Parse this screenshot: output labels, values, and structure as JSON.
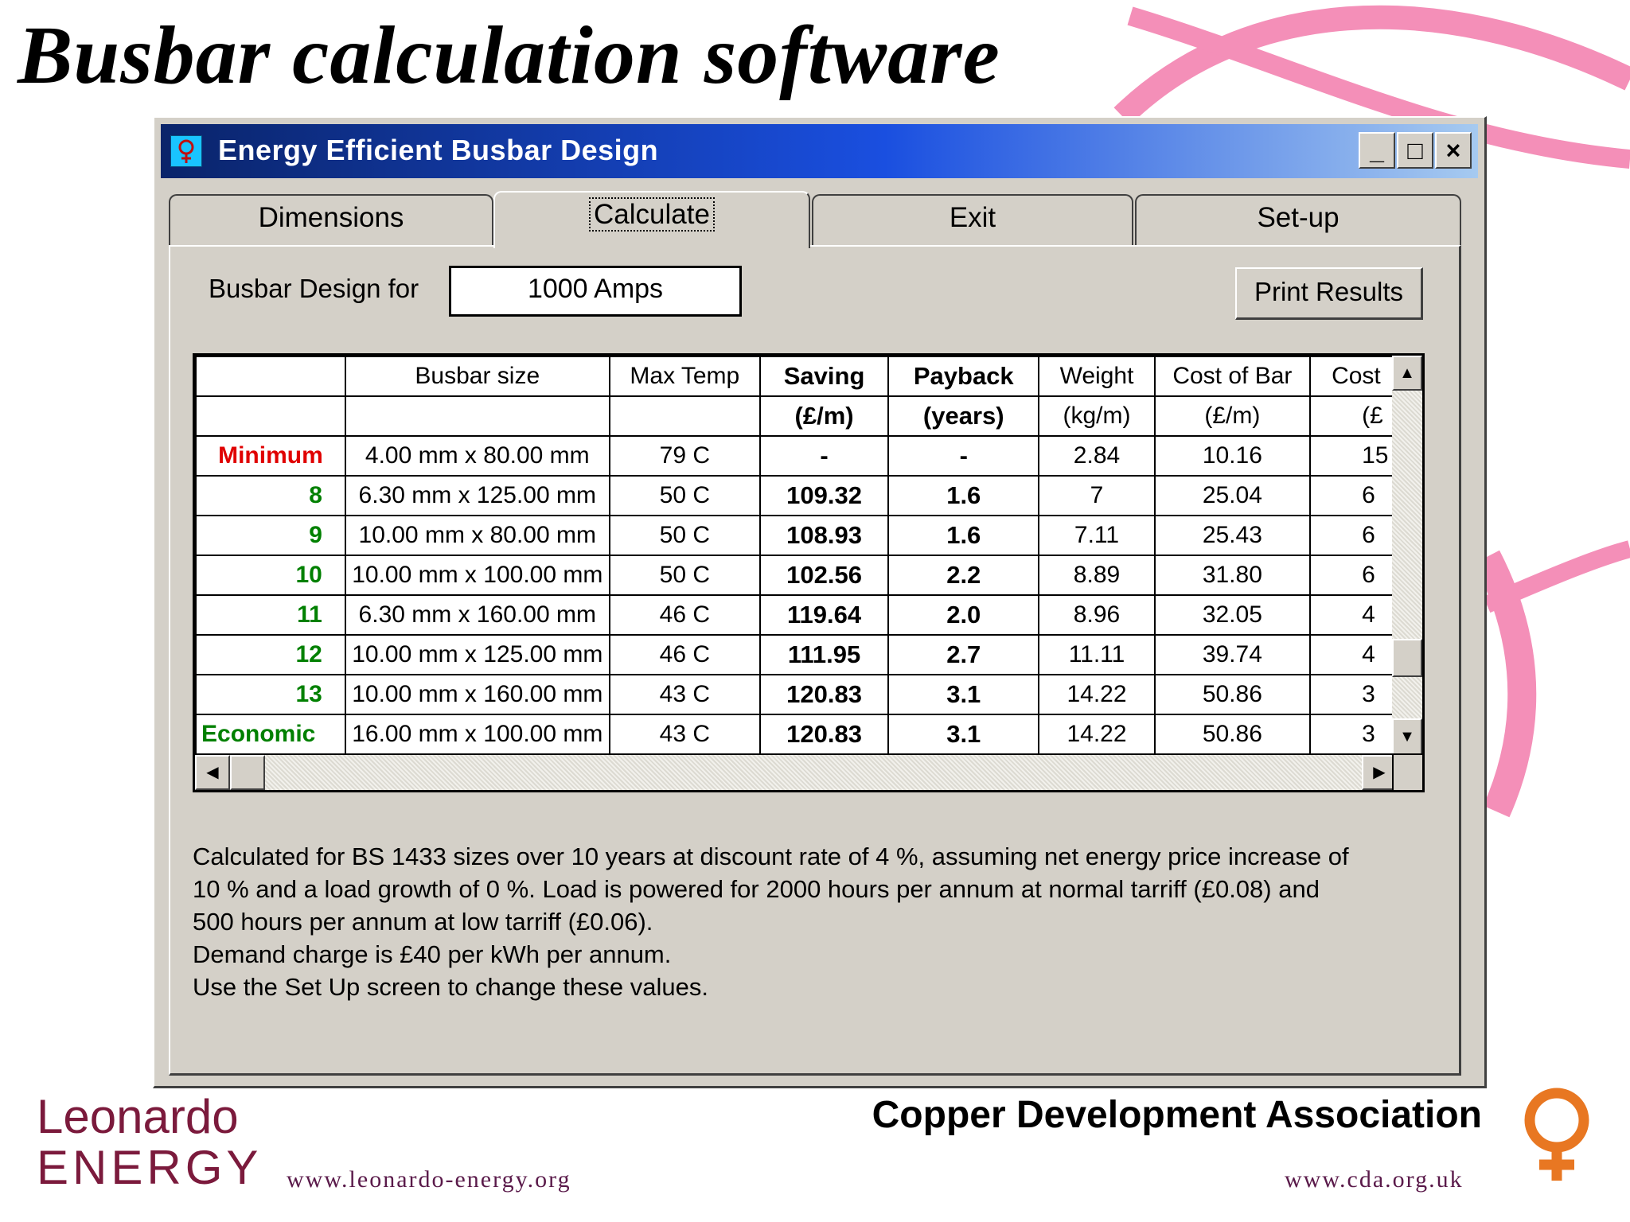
{
  "slide": {
    "title": "Busbar calculation software"
  },
  "window": {
    "title": "Energy Efficient Busbar Design",
    "controls": {
      "minimize": "_",
      "maximize": "□",
      "close": "×"
    }
  },
  "tabs": [
    {
      "label": "Dimensions",
      "active": false
    },
    {
      "label": "Calculate",
      "active": true
    },
    {
      "label": "Exit",
      "active": false
    },
    {
      "label": "Set-up",
      "active": false
    }
  ],
  "form": {
    "design_label": "Busbar Design for",
    "amps_value": "1000 Amps",
    "print_label": "Print Results"
  },
  "grid": {
    "headers": [
      "",
      "Busbar size",
      "Max Temp",
      "Saving",
      "Payback",
      "Weight",
      "Cost of Bar",
      "Cost"
    ],
    "units": [
      "",
      "",
      "",
      "(£/m)",
      "(years)",
      "(kg/m)",
      "(£/m)",
      "(£"
    ],
    "rows": [
      {
        "label": "Minimum",
        "size": "4.00 mm x 80.00 mm",
        "temp": "79 C",
        "saving": "-",
        "payback": "-",
        "weight": "2.84",
        "cost_bar": "10.16",
        "cost": "15"
      },
      {
        "label": "8",
        "size": "6.30 mm x 125.00 mm",
        "temp": "50 C",
        "saving": "109.32",
        "payback": "1.6",
        "weight": "7",
        "cost_bar": "25.04",
        "cost": "6"
      },
      {
        "label": "9",
        "size": "10.00 mm x 80.00 mm",
        "temp": "50 C",
        "saving": "108.93",
        "payback": "1.6",
        "weight": "7.11",
        "cost_bar": "25.43",
        "cost": "6"
      },
      {
        "label": "10",
        "size": "10.00 mm x 100.00 mm",
        "temp": "50 C",
        "saving": "102.56",
        "payback": "2.2",
        "weight": "8.89",
        "cost_bar": "31.80",
        "cost": "6"
      },
      {
        "label": "11",
        "size": "6.30 mm x 160.00 mm",
        "temp": "46 C",
        "saving": "119.64",
        "payback": "2.0",
        "weight": "8.96",
        "cost_bar": "32.05",
        "cost": "4"
      },
      {
        "label": "12",
        "size": "10.00 mm x 125.00 mm",
        "temp": "46 C",
        "saving": "111.95",
        "payback": "2.7",
        "weight": "11.11",
        "cost_bar": "39.74",
        "cost": "4"
      },
      {
        "label": "13",
        "size": "10.00 mm x 160.00 mm",
        "temp": "43 C",
        "saving": "120.83",
        "payback": "3.1",
        "weight": "14.22",
        "cost_bar": "50.86",
        "cost": "3"
      },
      {
        "label": "Economic",
        "size": "16.00 mm x 100.00 mm",
        "temp": "43 C",
        "saving": "120.83",
        "payback": "3.1",
        "weight": "14.22",
        "cost_bar": "50.86",
        "cost": "3"
      }
    ]
  },
  "notes": {
    "line1": "Calculated for BS 1433  sizes over 10 years at discount rate of 4 %, assuming net energy price increase of",
    "line2": "10 % and a load growth of 0 %. Load is powered for 2000 hours per annum at normal tarriff (£0.08) and",
    "line3": "500 hours per annum at low tarriff (£0.06).",
    "line4": "Demand charge is £40 per kWh per annum.",
    "line5": "Use the Set Up screen to change these values."
  },
  "footer": {
    "leonardo_line1": "Leonardo",
    "leonardo_line2": "ENERGY",
    "leonardo_url": "www.leonardo-energy.org",
    "cda_name": "Copper Development Association",
    "cda_url": "www.cda.org.uk"
  },
  "colors": {
    "accent_pink": "#f48fb8",
    "cda_orange": "#e87722",
    "leonardo_maroon": "#7b1a3c",
    "minimum_red": "#e00000",
    "row_green": "#008000"
  }
}
